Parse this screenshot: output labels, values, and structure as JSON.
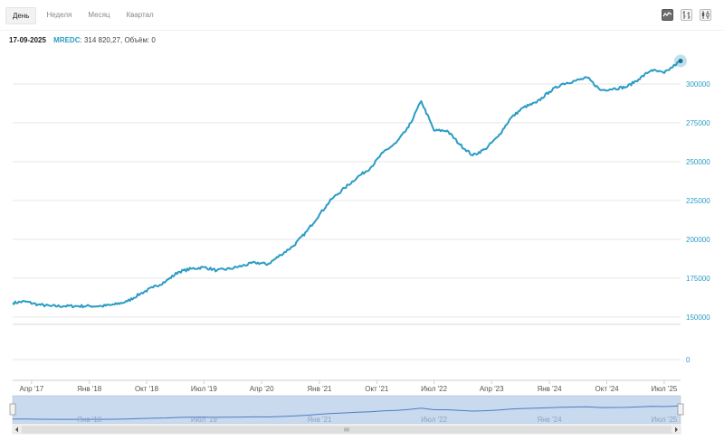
{
  "toolbar": {
    "tabs": [
      {
        "label": "День",
        "active": true
      },
      {
        "label": "Неделя",
        "active": false
      },
      {
        "label": "Месяц",
        "active": false
      },
      {
        "label": "Квартал",
        "active": false
      }
    ],
    "chart_types": [
      "line-chart-icon",
      "ohlc-chart-icon",
      "candlestick-chart-icon"
    ]
  },
  "info": {
    "date": "17-09-2025",
    "ticker": "MREDC",
    "value": "314 820,27",
    "volume_text": "Объём: 0"
  },
  "colors": {
    "line": "#2b9cc4",
    "grid": "#e6e6e6",
    "axis_text": "#2b9cc4",
    "navigator_fill": "#c9d9ee",
    "navigator_line": "#4b7fc2"
  },
  "chart_data": {
    "type": "line",
    "title": "",
    "xlabel": "",
    "ylabel": "",
    "ylim": [
      147000,
      318000
    ],
    "yticks": [
      150000,
      175000,
      200000,
      225000,
      250000,
      275000,
      300000
    ],
    "ytick_labels": [
      "150000",
      "175000",
      "200000",
      "225000",
      "250000",
      "275000",
      "300000"
    ],
    "volume_tick_label": "0",
    "x_range": [
      "2017-01-01",
      "2025-09-17"
    ],
    "xticks": [
      {
        "date": "2017-04-01",
        "label": "Апр '17"
      },
      {
        "date": "2018-01-01",
        "label": "Янв '18"
      },
      {
        "date": "2018-10-01",
        "label": "Окт '18"
      },
      {
        "date": "2019-07-01",
        "label": "Июл '19"
      },
      {
        "date": "2020-04-01",
        "label": "Апр '20"
      },
      {
        "date": "2021-01-01",
        "label": "Янв '21"
      },
      {
        "date": "2021-10-01",
        "label": "Окт '21"
      },
      {
        "date": "2022-07-01",
        "label": "Июл '22"
      },
      {
        "date": "2023-04-01",
        "label": "Апр '23"
      },
      {
        "date": "2024-01-01",
        "label": "Янв '24"
      },
      {
        "date": "2024-10-01",
        "label": "Окт '24"
      },
      {
        "date": "2025-07-01",
        "label": "Июл '25"
      }
    ],
    "navigator_labels": [
      {
        "date": "2018-01-01",
        "label": "Янв '18"
      },
      {
        "date": "2019-07-01",
        "label": "Июл '19"
      },
      {
        "date": "2021-01-01",
        "label": "Янв '21"
      },
      {
        "date": "2022-07-01",
        "label": "Июл '22"
      },
      {
        "date": "2024-01-01",
        "label": "Янв '24"
      },
      {
        "date": "2025-07-01",
        "label": "Июл '25"
      }
    ],
    "series": [
      {
        "x": [
          "2017-01-01",
          "2017-03-01",
          "2017-05-01",
          "2017-07-01",
          "2017-09-01",
          "2017-11-01",
          "2018-01-01",
          "2018-03-01",
          "2018-05-01",
          "2018-07-01",
          "2018-09-01",
          "2018-11-01",
          "2019-01-01",
          "2019-03-01",
          "2019-05-01",
          "2019-07-01",
          "2019-09-01",
          "2019-11-01",
          "2020-01-01",
          "2020-03-01",
          "2020-05-01",
          "2020-07-01",
          "2020-09-01",
          "2020-11-01",
          "2021-01-01",
          "2021-03-01",
          "2021-05-01",
          "2021-07-01",
          "2021-09-01",
          "2021-11-01",
          "2022-01-01",
          "2022-03-01",
          "2022-05-01",
          "2022-07-01",
          "2022-09-01",
          "2022-11-01",
          "2023-01-01",
          "2023-03-01",
          "2023-05-01",
          "2023-07-01",
          "2023-09-01",
          "2023-11-01",
          "2024-01-01",
          "2024-03-01",
          "2024-05-01",
          "2024-07-01",
          "2024-09-01",
          "2024-11-01",
          "2025-01-01",
          "2025-03-01",
          "2025-05-01",
          "2025-07-01",
          "2025-09-17"
        ],
        "y": [
          159000,
          160000,
          158000,
          157000,
          157000,
          157000,
          157000,
          157000,
          158000,
          160000,
          165000,
          169000,
          173000,
          179000,
          181000,
          182000,
          180000,
          181000,
          183000,
          185000,
          184000,
          190000,
          196000,
          205000,
          216000,
          226000,
          233000,
          240000,
          246000,
          256000,
          262000,
          272000,
          289000,
          270000,
          270000,
          261000,
          254000,
          258000,
          266000,
          278000,
          285000,
          288000,
          295000,
          300000,
          302000,
          304000,
          296000,
          297000,
          298000,
          303000,
          309000,
          307000,
          314820
        ]
      }
    ]
  }
}
